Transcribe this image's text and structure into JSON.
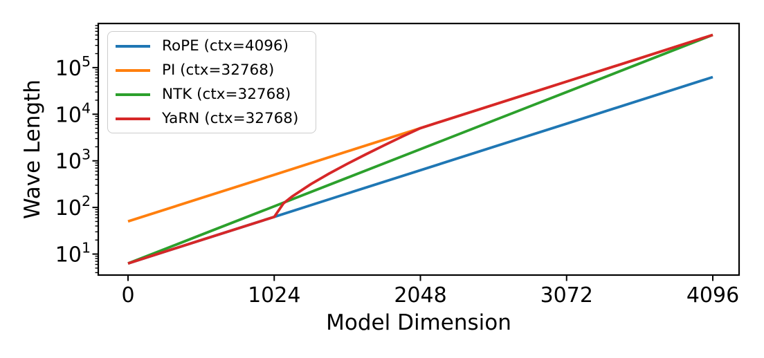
{
  "chart_data": {
    "type": "line",
    "title": "",
    "xlabel": "Model Dimension",
    "ylabel": "Wave Length",
    "x_scale": "linear",
    "y_scale": "log",
    "xlim": [
      -209,
      4281
    ],
    "ylim": [
      3.6,
      860000
    ],
    "x_ticks": [
      0,
      1024,
      2048,
      3072,
      4096
    ],
    "y_tick_base": "10",
    "y_tick_exponents": [
      1,
      2,
      3,
      4,
      5
    ],
    "grid": false,
    "legend_position": "upper-left",
    "axis_color": "#000000",
    "background": "#ffffff",
    "series": [
      {
        "name": "RoPE (ctx=4096)",
        "color": "#1f77b4",
        "x": [
          0,
          512,
          1024,
          1536,
          2048,
          2560,
          3072,
          3584,
          4096
        ],
        "y": [
          6.28,
          19.9,
          62.8,
          198.7,
          628.3,
          1987,
          6283,
          19869,
          62832
        ]
      },
      {
        "name": "PI (ctx=32768)",
        "color": "#ff7f0e",
        "x": [
          0,
          512,
          1024,
          1536,
          2048,
          2560,
          3072,
          3584,
          4096
        ],
        "y": [
          50.3,
          158.9,
          502.7,
          1589.6,
          5026.5,
          15896,
          50265,
          158956,
          502655
        ]
      },
      {
        "name": "NTK (ctx=32768)",
        "color": "#2ca02c",
        "x": [
          0,
          512,
          1024,
          1536,
          2048,
          2560,
          3072,
          3584,
          4096
        ],
        "y": [
          6.28,
          25.8,
          105.7,
          433.6,
          1778.7,
          7295,
          29920,
          122750,
          503380
        ]
      },
      {
        "name": "YaRN (ctx=32768)",
        "color": "#d62728",
        "x": [
          0,
          512,
          1024,
          1088,
          1152,
          1280,
          1408,
          1536,
          1664,
          1792,
          1920,
          2048,
          2560,
          3072,
          3584,
          4096
        ],
        "y": [
          6.28,
          19.9,
          62.8,
          121.9,
          174.4,
          315.7,
          532,
          863.3,
          1371.6,
          2141.7,
          3300.7,
          5026.5,
          15896,
          50265,
          158956,
          502655
        ]
      }
    ]
  }
}
